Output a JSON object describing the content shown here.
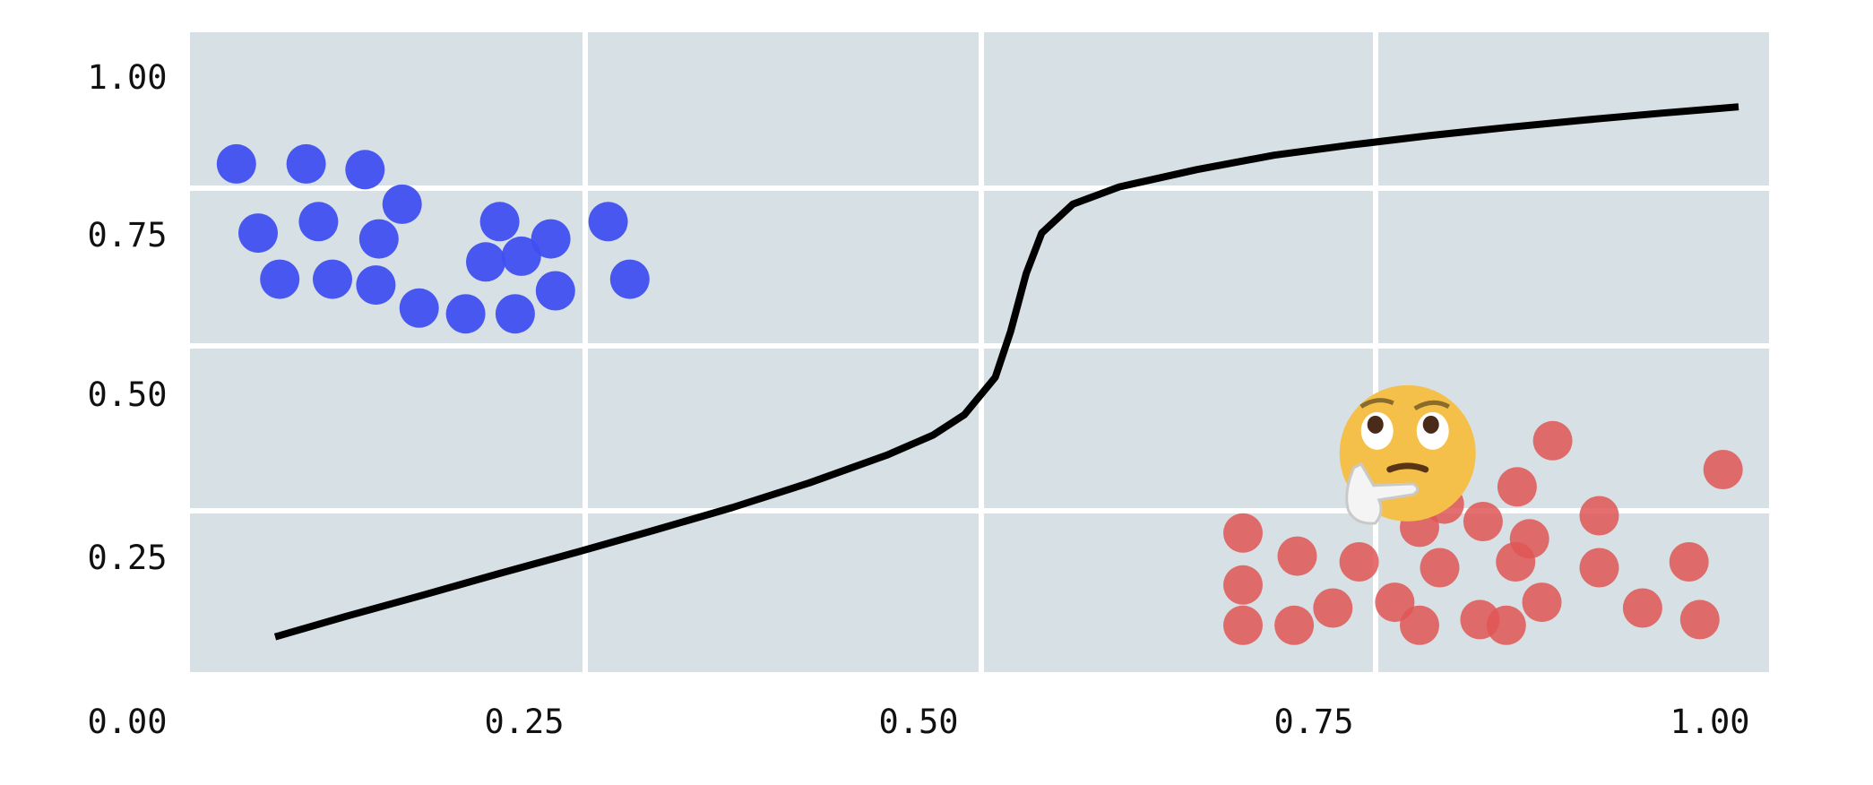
{
  "chart_data": {
    "type": "scatter",
    "title": "",
    "xlabel": "",
    "ylabel": "",
    "xlim": [
      0.0,
      1.0
    ],
    "ylim": [
      0.0,
      1.0
    ],
    "grid": true,
    "x_ticks": [
      "0.00",
      "0.25",
      "0.50",
      "0.75",
      "1.00"
    ],
    "y_ticks": [
      "0.25",
      "0.50",
      "0.75",
      "1.00"
    ],
    "series": [
      {
        "kind": "scatter",
        "color": "#3f4ff0",
        "points": [
          [
            0.03,
            0.85
          ],
          [
            0.075,
            0.85
          ],
          [
            0.113,
            0.84
          ],
          [
            0.044,
            0.73
          ],
          [
            0.083,
            0.75
          ],
          [
            0.122,
            0.72
          ],
          [
            0.137,
            0.78
          ],
          [
            0.058,
            0.65
          ],
          [
            0.092,
            0.65
          ],
          [
            0.12,
            0.64
          ],
          [
            0.148,
            0.6
          ],
          [
            0.178,
            0.59
          ],
          [
            0.191,
            0.68
          ],
          [
            0.214,
            0.69
          ],
          [
            0.2,
            0.75
          ],
          [
            0.233,
            0.72
          ],
          [
            0.21,
            0.59
          ],
          [
            0.236,
            0.63
          ],
          [
            0.27,
            0.75
          ],
          [
            0.284,
            0.65
          ]
        ]
      },
      {
        "kind": "scatter",
        "color": "#e05555",
        "points": [
          [
            0.68,
            0.21
          ],
          [
            0.715,
            0.17
          ],
          [
            0.755,
            0.16
          ],
          [
            0.68,
            0.12
          ],
          [
            0.68,
            0.05
          ],
          [
            0.713,
            0.05
          ],
          [
            0.738,
            0.08
          ],
          [
            0.778,
            0.09
          ],
          [
            0.794,
            0.22
          ],
          [
            0.81,
            0.26
          ],
          [
            0.807,
            0.15
          ],
          [
            0.794,
            0.05
          ],
          [
            0.835,
            0.23
          ],
          [
            0.857,
            0.29
          ],
          [
            0.856,
            0.16
          ],
          [
            0.865,
            0.2
          ],
          [
            0.833,
            0.06
          ],
          [
            0.85,
            0.05
          ],
          [
            0.873,
            0.09
          ],
          [
            0.88,
            0.37
          ],
          [
            0.91,
            0.24
          ],
          [
            0.91,
            0.15
          ],
          [
            0.938,
            0.08
          ],
          [
            0.968,
            0.16
          ],
          [
            0.975,
            0.06
          ],
          [
            0.99,
            0.32
          ]
        ]
      },
      {
        "kind": "line",
        "color": "#000000",
        "points": [
          [
            0.055,
            0.03
          ],
          [
            0.1,
            0.065
          ],
          [
            0.15,
            0.102
          ],
          [
            0.2,
            0.14
          ],
          [
            0.25,
            0.177
          ],
          [
            0.3,
            0.215
          ],
          [
            0.35,
            0.254
          ],
          [
            0.4,
            0.297
          ],
          [
            0.45,
            0.345
          ],
          [
            0.48,
            0.38
          ],
          [
            0.5,
            0.415
          ],
          [
            0.52,
            0.48
          ],
          [
            0.53,
            0.56
          ],
          [
            0.54,
            0.66
          ],
          [
            0.55,
            0.73
          ],
          [
            0.57,
            0.78
          ],
          [
            0.6,
            0.81
          ],
          [
            0.65,
            0.84
          ],
          [
            0.7,
            0.865
          ],
          [
            0.75,
            0.883
          ],
          [
            0.8,
            0.899
          ],
          [
            0.85,
            0.913
          ],
          [
            0.9,
            0.926
          ],
          [
            0.95,
            0.938
          ],
          [
            1.0,
            0.949
          ]
        ]
      }
    ],
    "annotation_icon": "thinking-face-emoji",
    "annotation_position": [
      0.74,
      0.37
    ]
  }
}
